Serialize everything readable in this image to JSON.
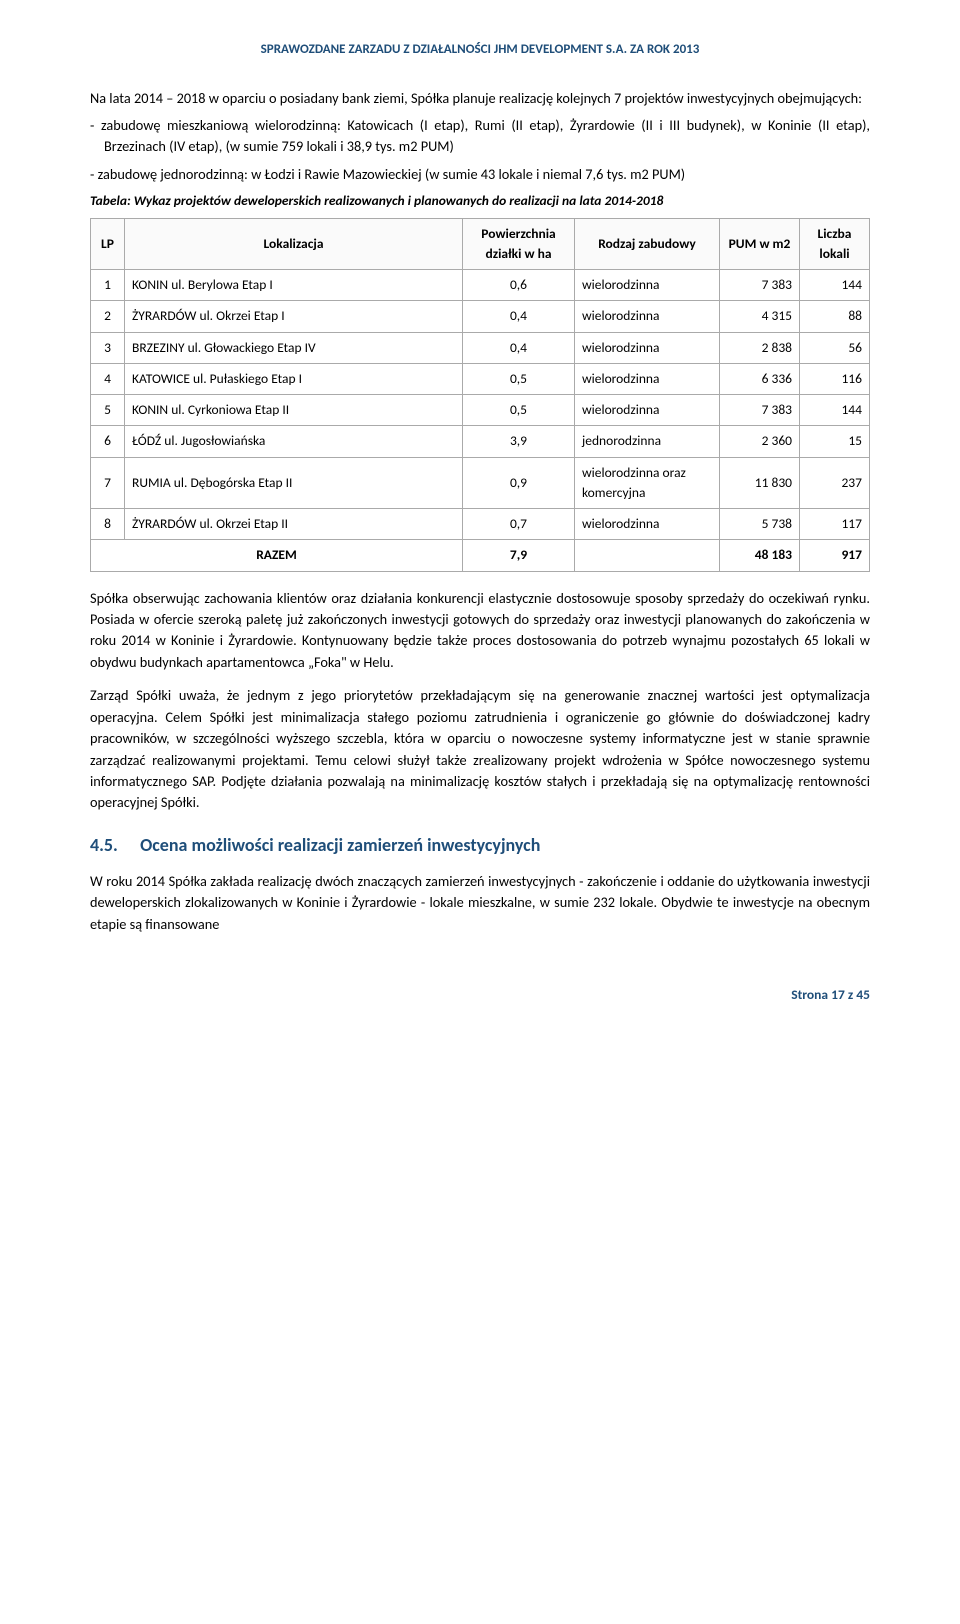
{
  "header": "SPRAWOZDANE ZARZADU Z DZIAŁALNOŚCI JHM DEVELOPMENT S.A. ZA ROK 2013",
  "intro_para": "Na lata 2014 – 2018 w oparciu o posiadany bank ziemi, Spółka planuje realizację kolejnych 7 projektów inwestycyjnych obejmujących:",
  "bullets": [
    "zabudowę mieszkaniową wielorodzinną: Katowicach (I etap), Rumi (II etap), Żyrardowie (II i III budynek), w Koninie (II etap), Brzezinach (IV etap), (w sumie 759 lokali i 38,9 tys. m2 PUM)",
    "zabudowę jednorodzinną: w Łodzi i Rawie Mazowieckiej (w sumie 43 lokale i niemal 7,6 tys. m2 PUM)"
  ],
  "table_caption": "Tabela: Wykaz projektów deweloperskich realizowanych i planowanych do realizacji na lata 2014-2018",
  "columns": {
    "lp": "LP",
    "loc": "Lokalizacja",
    "pow": "Powierzchnia działki w ha",
    "rod": "Rodzaj zabudowy",
    "pum": "PUM w m2",
    "lic": "Liczba lokali"
  },
  "rows": [
    {
      "lp": "1",
      "loc": "KONIN ul. Berylowa Etap I",
      "pow": "0,6",
      "rod": "wielorodzinna",
      "pum": "7 383",
      "lic": "144"
    },
    {
      "lp": "2",
      "loc": "ŻYRARDÓW ul. Okrzei Etap I",
      "pow": "0,4",
      "rod": "wielorodzinna",
      "pum": "4 315",
      "lic": "88"
    },
    {
      "lp": "3",
      "loc": "BRZEZINY ul. Głowackiego Etap IV",
      "pow": "0,4",
      "rod": "wielorodzinna",
      "pum": "2 838",
      "lic": "56"
    },
    {
      "lp": "4",
      "loc": "KATOWICE ul. Pułaskiego Etap I",
      "pow": "0,5",
      "rod": "wielorodzinna",
      "pum": "6 336",
      "lic": "116"
    },
    {
      "lp": "5",
      "loc": "KONIN ul. Cyrkoniowa Etap II",
      "pow": "0,5",
      "rod": "wielorodzinna",
      "pum": "7 383",
      "lic": "144"
    },
    {
      "lp": "6",
      "loc": "ŁÓDŹ ul. Jugosłowiańska",
      "pow": "3,9",
      "rod": "jednorodzinna",
      "pum": "2 360",
      "lic": "15"
    },
    {
      "lp": "7",
      "loc": "RUMIA ul. Dębogórska Etap II",
      "pow": "0,9",
      "rod": "wielorodzinna oraz komercyjna",
      "pum": "11 830",
      "lic": "237"
    },
    {
      "lp": "8",
      "loc": "ŻYRARDÓW ul. Okrzei Etap II",
      "pow": "0,7",
      "rod": "wielorodzinna",
      "pum": "5 738",
      "lic": "117"
    }
  ],
  "total": {
    "label": "RAZEM",
    "pow": "7,9",
    "pum": "48 183",
    "lic": "917"
  },
  "body_paras": [
    "Spółka obserwując zachowania klientów oraz działania konkurencji elastycznie dostosowuje sposoby sprzedaży do oczekiwań rynku. Posiada w ofercie szeroką paletę już zakończonych inwestycji gotowych do sprzedaży oraz inwestycji planowanych do zakończenia w roku 2014 w Koninie i Żyrardowie. Kontynuowany będzie także proces dostosowania do potrzeb wynajmu pozostałych 65 lokali w obydwu budynkach apartamentowca „Foka\" w Helu.",
    "Zarząd Spółki uważa, że jednym z jego priorytetów przekładającym się na generowanie znacznej wartości jest optymalizacja operacyjna. Celem Spółki jest minimalizacja stałego poziomu zatrudnienia i ograniczenie go głównie do doświadczonej kadry pracowników, w szczególności wyższego szczebla, która w oparciu o nowoczesne systemy informatyczne jest w stanie sprawnie zarządzać realizowanymi projektami. Temu celowi służył także zrealizowany projekt wdrożenia w Spółce nowoczesnego systemu informatycznego SAP. Podjęte działania pozwalają na minimalizację kosztów stałych i przekładają się na optymalizację rentowności operacyjnej Spółki."
  ],
  "section": {
    "num": "4.5.",
    "title": "Ocena możliwości realizacji zamierzeń inwestycyjnych"
  },
  "last_para": "W roku 2014 Spółka zakłada realizację dwóch znaczących zamierzeń inwestycyjnych - zakończenie i oddanie do użytkowania inwestycji deweloperskich zlokalizowanych w Koninie i Żyrardowie - lokale mieszkalne, w sumie 232 lokale. Obydwie te inwestycje na obecnym etapie są finansowane",
  "footer": "Strona 17 z 45"
}
